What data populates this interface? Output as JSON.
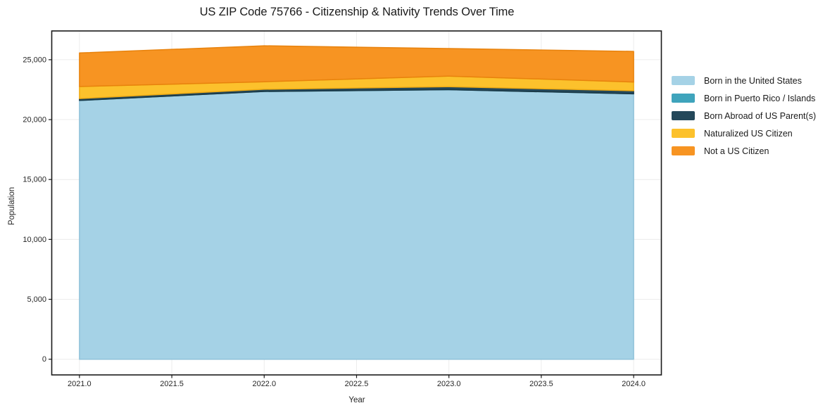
{
  "chart_data": {
    "type": "area",
    "stacked": true,
    "title": "US ZIP Code 75766 - Citizenship & Nativity Trends Over Time",
    "xlabel": "Year",
    "ylabel": "Population",
    "x": [
      2021,
      2022,
      2023,
      2024
    ],
    "series": [
      {
        "id": "born-in-the-united-states",
        "name": "Born in the United States",
        "color": "#a5d2e6",
        "edge": "#8fc2d9",
        "values": [
          21600,
          22350,
          22500,
          22150
        ]
      },
      {
        "id": "born-in-puerto-rico-islands",
        "name": "Born in Puerto Rico / Islands",
        "color": "#3fa4bc",
        "edge": "#338da4",
        "values": [
          0,
          0,
          0,
          0
        ]
      },
      {
        "id": "born-abroad-of-us-parents",
        "name": "Born Abroad of US Parent(s)",
        "color": "#24485a",
        "edge": "#1a3845",
        "values": [
          160,
          180,
          250,
          260
        ]
      },
      {
        "id": "naturalized-us-citizen",
        "name": "Naturalized US Citizen",
        "color": "#fcc12c",
        "edge": "#f0ab13",
        "values": [
          1000,
          630,
          880,
          730
        ]
      },
      {
        "id": "not-a-us-citizen",
        "name": "Not a US Citizen",
        "color": "#f79422",
        "edge": "#e8820c",
        "values": [
          2800,
          3000,
          2300,
          2550
        ]
      }
    ],
    "totals": [
      25560,
      26160,
      25930,
      25690
    ],
    "xticks": [
      "2021.0",
      "2021.5",
      "2022.0",
      "2022.5",
      "2023.0",
      "2023.5",
      "2024.0"
    ],
    "xtick_values": [
      2021,
      2021.5,
      2022,
      2022.5,
      2023,
      2023.5,
      2024
    ],
    "yticks": [
      "0",
      "5,000",
      "10,000",
      "15,000",
      "20,000",
      "25,000"
    ],
    "ytick_values": [
      0,
      5000,
      10000,
      15000,
      20000,
      25000
    ],
    "xlim": [
      2020.85,
      2024.15
    ],
    "ylim": [
      -1310,
      27400
    ],
    "grid": true,
    "legend_position": "right"
  }
}
